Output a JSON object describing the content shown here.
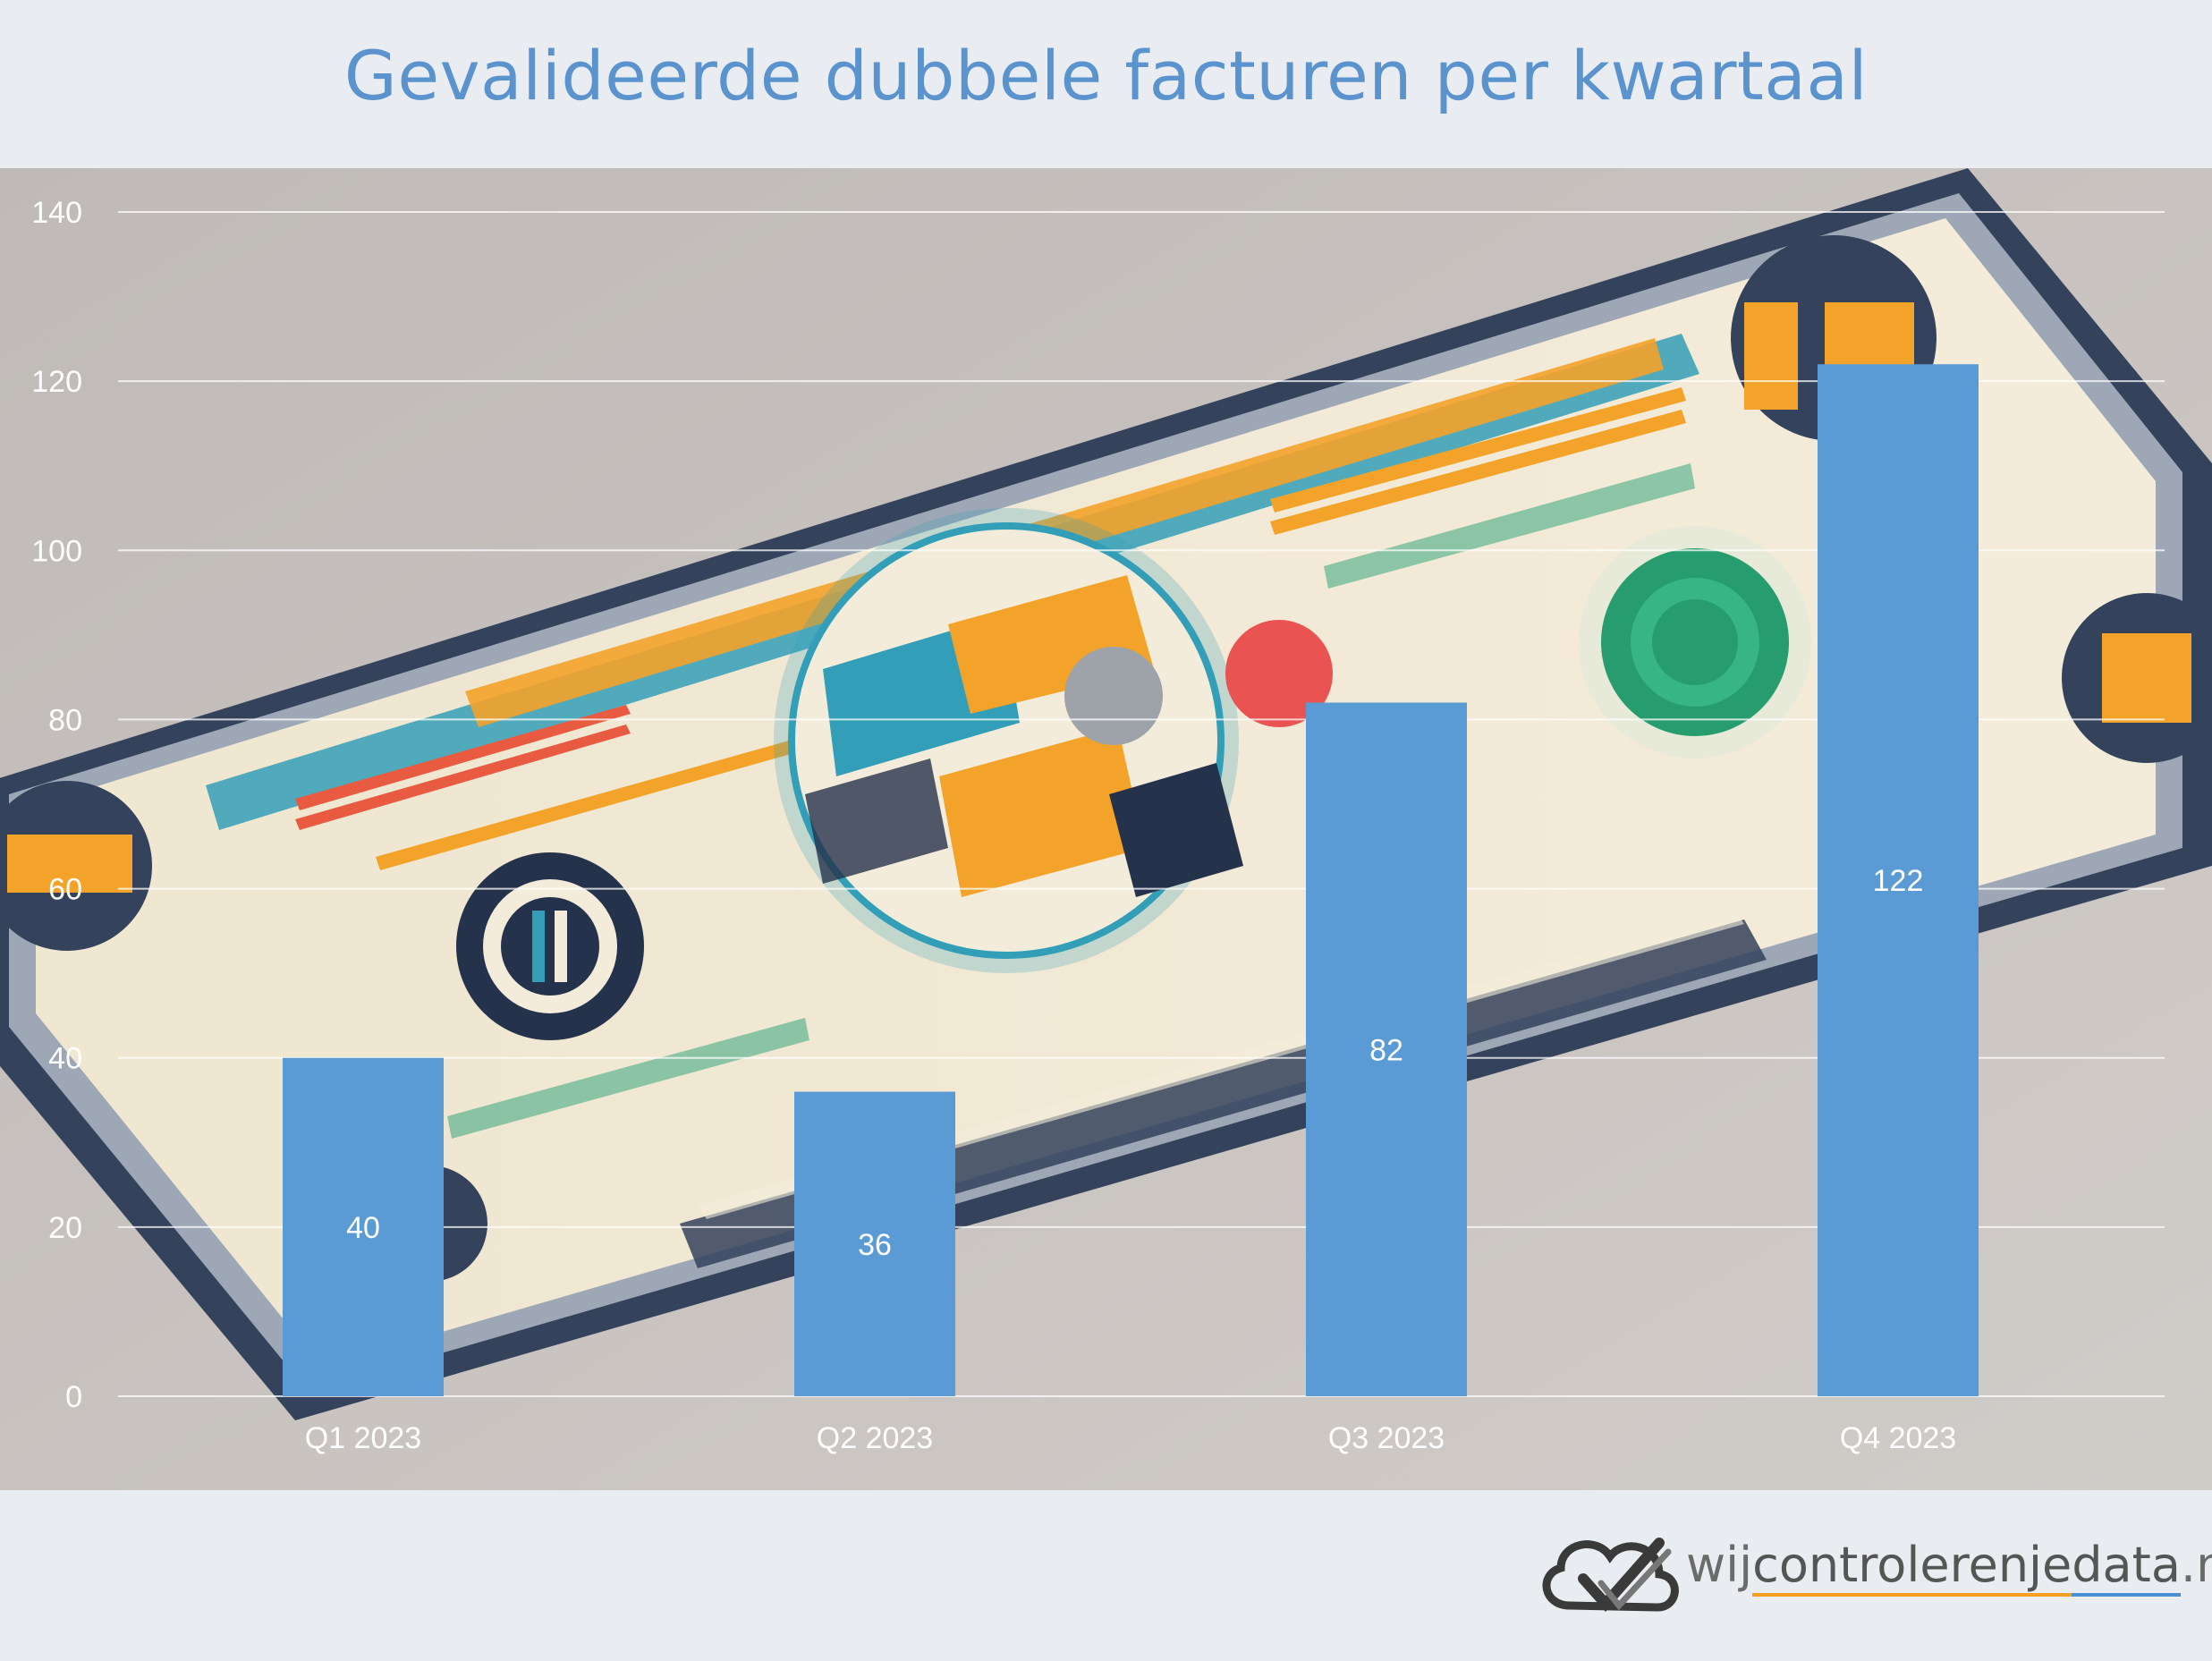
{
  "chart_data": {
    "type": "bar",
    "title": "Gevalideerde dubbele facturen per kwartaal",
    "categories": [
      "Q1 2023",
      "Q2 2023",
      "Q3 2023",
      "Q4 2023"
    ],
    "values": [
      40,
      36,
      82,
      122
    ],
    "data_labels": [
      "40",
      "36",
      "82",
      "122"
    ],
    "ylim": [
      0,
      140
    ],
    "yticks": [
      0,
      20,
      40,
      60,
      80,
      100,
      120,
      140
    ],
    "ytick_labels": [
      "0",
      "20",
      "40",
      "60",
      "80",
      "100",
      "120",
      "140"
    ],
    "xlabel": "",
    "ylabel": "",
    "grid": true,
    "legend": "none",
    "bar_color": "#5b9bd5",
    "background": "illustrated banknote"
  },
  "footer": {
    "logo_icon": "cloud-check-icon",
    "brand_prefix": "wij",
    "brand_segment_1": "controleren",
    "brand_segment_2": "je",
    "brand_segment_3": "data",
    "brand_suffix": ".nl"
  },
  "colors": {
    "title": "#5a93cd",
    "bar": "#5b9bd5",
    "accent_orange": "#f3a021",
    "accent_teal": "#2b9bb5"
  }
}
